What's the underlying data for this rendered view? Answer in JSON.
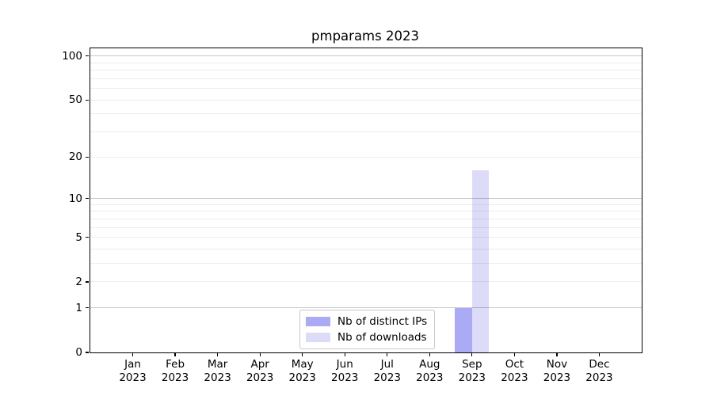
{
  "title": "pmparams 2023",
  "chart_data": {
    "type": "bar",
    "title": "pmparams 2023",
    "categories": [
      "Jan",
      "Feb",
      "Mar",
      "Apr",
      "May",
      "Jun",
      "Jul",
      "Aug",
      "Sep",
      "Oct",
      "Nov",
      "Dec"
    ],
    "category_year": "2023",
    "series": [
      {
        "name": "Nb of distinct IPs",
        "color": "#aaaaf5",
        "values": [
          0,
          0,
          0,
          0,
          0,
          0,
          0,
          0,
          1,
          0,
          0,
          0
        ]
      },
      {
        "name": "Nb of downloads",
        "color": "#dcdcf8",
        "values": [
          0,
          0,
          0,
          0,
          0,
          0,
          0,
          0,
          16,
          0,
          0,
          0
        ]
      }
    ],
    "y_scale": "log(1+v)",
    "ylim": [
      0,
      113
    ],
    "y_tick_values": [
      0,
      1,
      2,
      5,
      10,
      20,
      50,
      100
    ],
    "y_major_grid": [
      1,
      10,
      100
    ],
    "y_minor_grid": [
      2,
      3,
      4,
      5,
      6,
      7,
      8,
      9,
      20,
      30,
      40,
      50,
      60,
      70,
      80,
      90
    ],
    "legend_position": "lower center",
    "colors": {
      "axis": "#000000",
      "major_grid": "#c6c6c6",
      "minor_grid": "#ececec",
      "background": "#ffffff"
    }
  }
}
